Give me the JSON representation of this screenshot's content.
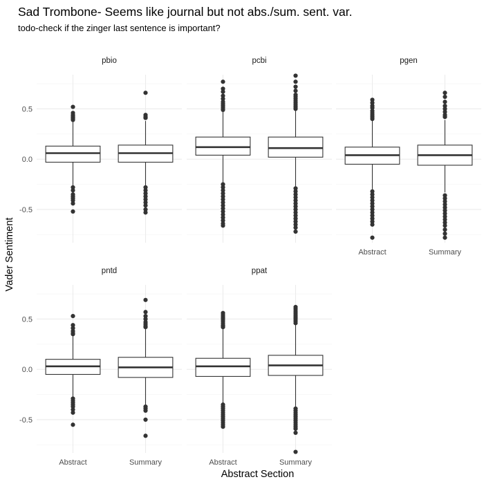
{
  "chart_data": {
    "type": "boxplot",
    "title": "Sad Trombone- Seems like journal but not abs./sum. sent. var.",
    "subtitle": "todo-check if the zinger last sentence is important?",
    "xlabel": "Abstract Section",
    "ylabel": "Vader Sentiment",
    "categories": [
      "Abstract",
      "Summary"
    ],
    "y_ticks": [
      -0.5,
      0.0,
      0.5
    ],
    "y_tick_labels": [
      "-0.5",
      "0.0",
      "0.5"
    ],
    "ylim": [
      -0.83,
      0.84
    ],
    "grid": true,
    "facet_layout": "3 columns x 2 rows, shared axes",
    "colors": {
      "box": "#333333",
      "fill": "#ffffff",
      "grid": "#ebebeb",
      "text": "#4d4d4d"
    },
    "panels": [
      {
        "name": "pbio",
        "boxes": [
          {
            "category": "Abstract",
            "q1": -0.03,
            "median": 0.06,
            "q3": 0.13,
            "whisker_low": -0.26,
            "whisker_high": 0.38,
            "outliers": [
              0.52,
              0.46,
              0.44,
              0.43,
              0.42,
              0.41,
              0.4,
              0.39,
              -0.28,
              -0.31,
              -0.35,
              -0.37,
              -0.39,
              -0.41,
              -0.44,
              -0.52
            ]
          },
          {
            "category": "Summary",
            "q1": -0.03,
            "median": 0.06,
            "q3": 0.14,
            "whisker_low": -0.26,
            "whisker_high": 0.38,
            "outliers": [
              0.66,
              0.44,
              0.42,
              0.41,
              -0.28,
              -0.31,
              -0.34,
              -0.37,
              -0.4,
              -0.43,
              -0.46,
              -0.5,
              -0.53
            ]
          }
        ]
      },
      {
        "name": "pcbi",
        "boxes": [
          {
            "category": "Abstract",
            "q1": 0.04,
            "median": 0.12,
            "q3": 0.22,
            "whisker_low": -0.23,
            "whisker_high": 0.48,
            "outliers": [
              0.77,
              0.7,
              0.67,
              0.63,
              0.6,
              0.57,
              0.55,
              0.53,
              0.51,
              0.49,
              -0.25,
              -0.28,
              -0.31,
              -0.34,
              -0.37,
              -0.4,
              -0.43,
              -0.46,
              -0.49,
              -0.52,
              -0.55,
              -0.58,
              -0.61,
              -0.64,
              -0.66
            ]
          },
          {
            "category": "Summary",
            "q1": 0.02,
            "median": 0.11,
            "q3": 0.22,
            "whisker_low": -0.27,
            "whisker_high": 0.48,
            "outliers": [
              0.83,
              0.77,
              0.72,
              0.68,
              0.64,
              0.62,
              0.6,
              0.58,
              0.56,
              0.54,
              0.52,
              0.5,
              -0.29,
              -0.32,
              -0.35,
              -0.38,
              -0.41,
              -0.44,
              -0.47,
              -0.5,
              -0.53,
              -0.56,
              -0.59,
              -0.62,
              -0.65,
              -0.68,
              -0.72
            ]
          }
        ]
      },
      {
        "name": "pgen",
        "boxes": [
          {
            "category": "Abstract",
            "q1": -0.05,
            "median": 0.04,
            "q3": 0.12,
            "whisker_low": -0.3,
            "whisker_high": 0.38,
            "outliers": [
              0.59,
              0.56,
              0.53,
              0.51,
              0.48,
              0.46,
              0.44,
              0.42,
              0.4,
              -0.32,
              -0.35,
              -0.38,
              -0.41,
              -0.44,
              -0.47,
              -0.5,
              -0.53,
              -0.56,
              -0.59,
              -0.62,
              -0.65,
              -0.78
            ]
          },
          {
            "category": "Summary",
            "q1": -0.06,
            "median": 0.04,
            "q3": 0.14,
            "whisker_low": -0.33,
            "whisker_high": 0.39,
            "outliers": [
              0.66,
              0.62,
              0.57,
              0.53,
              0.5,
              0.47,
              0.44,
              0.42,
              -0.36,
              -0.39,
              -0.42,
              -0.45,
              -0.48,
              -0.51,
              -0.54,
              -0.57,
              -0.6,
              -0.63,
              -0.66,
              -0.7,
              -0.74,
              -0.78
            ]
          }
        ]
      },
      {
        "name": "pntd",
        "boxes": [
          {
            "category": "Abstract",
            "q1": -0.05,
            "median": 0.03,
            "q3": 0.1,
            "whisker_low": -0.27,
            "whisker_high": 0.33,
            "outliers": [
              0.53,
              0.44,
              0.41,
              0.38,
              0.36,
              0.35,
              -0.29,
              -0.31,
              -0.33,
              -0.35,
              -0.37,
              -0.4,
              -0.43,
              -0.55
            ]
          },
          {
            "category": "Summary",
            "q1": -0.08,
            "median": 0.02,
            "q3": 0.12,
            "whisker_low": -0.36,
            "whisker_high": 0.4,
            "outliers": [
              0.69,
              0.57,
              0.53,
              0.5,
              0.47,
              0.45,
              0.43,
              0.42,
              -0.37,
              -0.39,
              -0.41,
              -0.5,
              -0.66
            ]
          }
        ]
      },
      {
        "name": "ppat",
        "boxes": [
          {
            "category": "Abstract",
            "q1": -0.07,
            "median": 0.03,
            "q3": 0.11,
            "whisker_low": -0.33,
            "whisker_high": 0.4,
            "outliers": [
              0.56,
              0.54,
              0.52,
              0.5,
              0.48,
              0.46,
              0.44,
              0.43,
              0.42,
              -0.35,
              -0.37,
              -0.39,
              -0.41,
              -0.43,
              -0.45,
              -0.47,
              -0.49,
              -0.51,
              -0.53,
              -0.55,
              -0.57
            ]
          },
          {
            "category": "Summary",
            "q1": -0.06,
            "median": 0.04,
            "q3": 0.14,
            "whisker_low": -0.37,
            "whisker_high": 0.45,
            "outliers": [
              0.62,
              0.6,
              0.58,
              0.56,
              0.54,
              0.52,
              0.5,
              0.48,
              0.46,
              -0.39,
              -0.41,
              -0.43,
              -0.45,
              -0.47,
              -0.49,
              -0.51,
              -0.53,
              -0.55,
              -0.57,
              -0.59,
              -0.63,
              -0.82
            ]
          }
        ]
      }
    ]
  }
}
